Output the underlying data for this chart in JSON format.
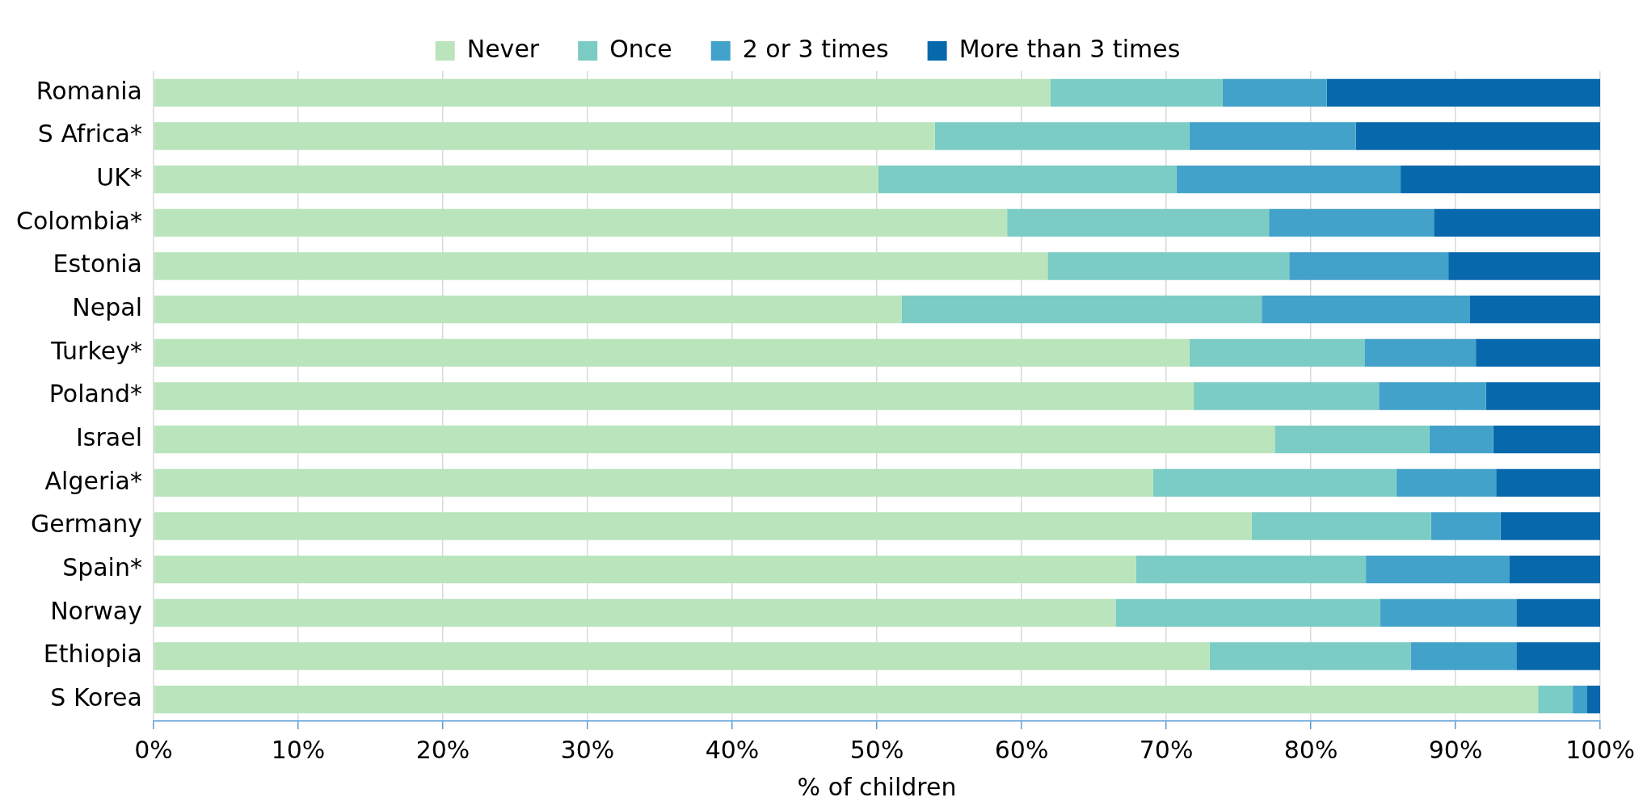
{
  "chart_data": {
    "type": "bar",
    "orientation": "horizontal",
    "stacked": true,
    "xlabel": "% of children",
    "categories": [
      "Romania",
      "S Africa*",
      "UK*",
      "Colombia*",
      "Estonia",
      "Nepal",
      "Turkey*",
      "Poland*",
      "Israel",
      "Algeria*",
      "Germany",
      "Spain*",
      "Norway",
      "Ethiopia",
      "S Korea"
    ],
    "series": [
      {
        "name": "Never",
        "color": "#bae4bc",
        "values": [
          62.0,
          54.0,
          50.1,
          59.0,
          61.8,
          51.7,
          71.6,
          71.9,
          77.5,
          69.1,
          75.9,
          67.9,
          66.5,
          73.0,
          95.7
        ]
      },
      {
        "name": "Once",
        "color": "#7bccc4",
        "values": [
          11.9,
          17.6,
          20.6,
          18.1,
          16.7,
          24.9,
          12.1,
          12.8,
          10.7,
          16.8,
          12.4,
          15.9,
          18.3,
          13.9,
          2.4
        ]
      },
      {
        "name": "2 or 3 times",
        "color": "#43a2ca",
        "values": [
          7.2,
          11.5,
          15.5,
          11.4,
          11.0,
          14.4,
          7.7,
          7.4,
          4.4,
          6.9,
          4.8,
          9.9,
          9.4,
          7.3,
          1.0
        ]
      },
      {
        "name": "More than 3 times",
        "color": "#0868ac",
        "values": [
          18.9,
          16.9,
          13.8,
          11.5,
          10.5,
          9.0,
          8.6,
          7.9,
          7.4,
          7.2,
          6.9,
          6.3,
          5.8,
          5.8,
          0.9
        ]
      }
    ],
    "xlim": [
      0,
      100
    ],
    "xticks": [
      {
        "value": 0,
        "label": "0%"
      },
      {
        "value": 10,
        "label": "10%"
      },
      {
        "value": 20,
        "label": "20%"
      },
      {
        "value": 30,
        "label": "30%"
      },
      {
        "value": 40,
        "label": "40%"
      },
      {
        "value": 50,
        "label": "50%"
      },
      {
        "value": 60,
        "label": "60%"
      },
      {
        "value": 70,
        "label": "70%"
      },
      {
        "value": 80,
        "label": "80%"
      },
      {
        "value": 90,
        "label": "90%"
      },
      {
        "value": 100,
        "label": "100%"
      }
    ],
    "grid": "x",
    "legend": "top"
  }
}
